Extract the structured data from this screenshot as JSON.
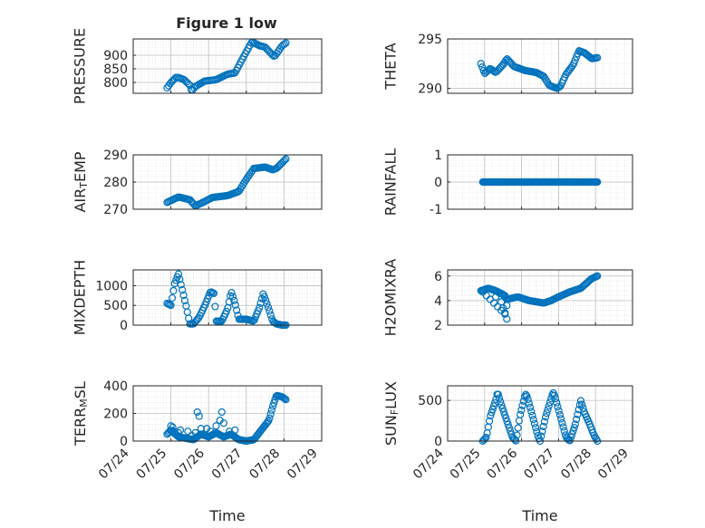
{
  "figure_title": "Figure 1 low",
  "colors": {
    "marker": "#0072BD",
    "axis": "#262626",
    "grid": "#d9d9d9",
    "background": "#ffffff"
  },
  "chart_data": [
    {
      "type": "scatter",
      "name": "pressure",
      "title": "Figure 1 low",
      "xlabel": "",
      "ylabel": "PRESSURE",
      "xlim": [
        0,
        5
      ],
      "ylim": [
        760,
        960
      ],
      "yticks": [
        800,
        850,
        900
      ],
      "ytick_labels": [
        "800",
        "850",
        "900"
      ],
      "xticks": [
        0,
        1,
        2,
        3,
        4,
        5
      ],
      "xtick_labels": [],
      "grid": true,
      "minor_grid": true,
      "keypoints": [
        [
          0.9,
          780
        ],
        [
          1.0,
          800
        ],
        [
          1.15,
          820
        ],
        [
          1.35,
          810
        ],
        [
          1.5,
          790
        ],
        [
          1.55,
          768
        ],
        [
          1.65,
          785
        ],
        [
          1.9,
          805
        ],
        [
          2.2,
          810
        ],
        [
          2.5,
          830
        ],
        [
          2.7,
          835
        ],
        [
          2.95,
          900
        ],
        [
          3.15,
          950
        ],
        [
          3.35,
          935
        ],
        [
          3.5,
          930
        ],
        [
          3.7,
          900
        ],
        [
          3.75,
          895
        ],
        [
          3.95,
          935
        ],
        [
          4.05,
          945
        ]
      ],
      "n_points": 80
    },
    {
      "type": "scatter",
      "name": "theta",
      "xlabel": "",
      "ylabel": "THETA",
      "xlim": [
        0,
        5
      ],
      "ylim": [
        289.5,
        295
      ],
      "yticks": [
        290,
        295
      ],
      "ytick_labels": [
        "290",
        "295"
      ],
      "xticks": [
        0,
        1,
        2,
        3,
        4,
        5
      ],
      "xtick_labels": [],
      "grid": true,
      "minor_grid": true,
      "keypoints": [
        [
          0.9,
          292.5
        ],
        [
          1.0,
          291.5
        ],
        [
          1.15,
          292.0
        ],
        [
          1.3,
          291.6
        ],
        [
          1.5,
          292.4
        ],
        [
          1.6,
          293.0
        ],
        [
          1.8,
          292.2
        ],
        [
          2.1,
          291.8
        ],
        [
          2.4,
          291.6
        ],
        [
          2.6,
          291.2
        ],
        [
          2.75,
          290.3
        ],
        [
          2.95,
          290.0
        ],
        [
          3.05,
          290.2
        ],
        [
          3.2,
          291.4
        ],
        [
          3.4,
          292.4
        ],
        [
          3.55,
          293.8
        ],
        [
          3.7,
          293.6
        ],
        [
          3.9,
          293.0
        ],
        [
          4.05,
          293.1
        ]
      ],
      "n_points": 90
    },
    {
      "type": "scatter",
      "name": "air_temp",
      "xlabel": "",
      "ylabel": "AIR_TEMP",
      "xlim": [
        0,
        5
      ],
      "ylim": [
        270,
        290
      ],
      "yticks": [
        270,
        280,
        290
      ],
      "ytick_labels": [
        "270",
        "280",
        "290"
      ],
      "xticks": [
        0,
        1,
        2,
        3,
        4,
        5
      ],
      "xtick_labels": [],
      "grid": true,
      "minor_grid": true,
      "keypoints": [
        [
          0.9,
          272.5
        ],
        [
          1.2,
          274.5
        ],
        [
          1.5,
          273.5
        ],
        [
          1.65,
          271.2
        ],
        [
          1.85,
          272.5
        ],
        [
          2.1,
          274.3
        ],
        [
          2.5,
          275
        ],
        [
          2.8,
          276.5
        ],
        [
          3.0,
          281
        ],
        [
          3.2,
          285
        ],
        [
          3.5,
          285.5
        ],
        [
          3.7,
          284.5
        ],
        [
          3.8,
          285
        ],
        [
          4.05,
          288.5
        ]
      ],
      "n_points": 90
    },
    {
      "type": "scatter",
      "name": "rainfall",
      "xlabel": "",
      "ylabel": "RAINFALL",
      "xlim": [
        0,
        5
      ],
      "ylim": [
        -1,
        1
      ],
      "yticks": [
        -1,
        0,
        1
      ],
      "ytick_labels": [
        "-1",
        "0",
        "1"
      ],
      "xticks": [
        0,
        1,
        2,
        3,
        4,
        5
      ],
      "xtick_labels": [],
      "grid": true,
      "minor_grid": true,
      "keypoints": [
        [
          0.95,
          0
        ],
        [
          4.05,
          0
        ]
      ],
      "n_points": 160
    },
    {
      "type": "scatter",
      "name": "mixdepth",
      "xlabel": "",
      "ylabel": "MIXDEPTH",
      "xlim": [
        0,
        5
      ],
      "ylim": [
        0,
        1400
      ],
      "yticks": [
        0,
        500,
        1000
      ],
      "ytick_labels": [
        "0",
        "500",
        "1000"
      ],
      "xticks": [
        0,
        1,
        2,
        3,
        4,
        5
      ],
      "xtick_labels": [],
      "grid": true,
      "minor_grid": true,
      "keypoints": [
        [
          0.9,
          550
        ],
        [
          1.0,
          500
        ],
        [
          1.1,
          1050
        ],
        [
          1.2,
          1300
        ],
        [
          1.3,
          900
        ],
        [
          1.4,
          500
        ],
        [
          1.5,
          30
        ],
        [
          1.6,
          30
        ],
        [
          1.75,
          200
        ],
        [
          1.9,
          500
        ],
        [
          2.05,
          850
        ],
        [
          2.15,
          800
        ],
        [
          2.2,
          100
        ],
        [
          2.35,
          100
        ],
        [
          2.5,
          400
        ],
        [
          2.6,
          850
        ],
        [
          2.7,
          550
        ],
        [
          2.8,
          150
        ],
        [
          3.0,
          150
        ],
        [
          3.2,
          100
        ],
        [
          3.35,
          450
        ],
        [
          3.45,
          800
        ],
        [
          3.6,
          400
        ],
        [
          3.7,
          100
        ],
        [
          3.8,
          30
        ],
        [
          3.95,
          0
        ],
        [
          4.05,
          0
        ]
      ],
      "n_points": 95
    },
    {
      "type": "scatter",
      "name": "h2omixra",
      "xlabel": "",
      "ylabel": "H2OMIXRA",
      "xlim": [
        0,
        5
      ],
      "ylim": [
        2,
        6.5
      ],
      "yticks": [
        2,
        4,
        6
      ],
      "ytick_labels": [
        "2",
        "4",
        "6"
      ],
      "xticks": [
        0,
        1,
        2,
        3,
        4,
        5
      ],
      "xtick_labels": [],
      "grid": true,
      "minor_grid": true,
      "keypoints": [
        [
          0.9,
          4.8
        ],
        [
          1.1,
          5.0
        ],
        [
          1.3,
          4.8
        ],
        [
          1.5,
          4.5
        ],
        [
          1.6,
          4.1
        ],
        [
          1.9,
          4.3
        ],
        [
          2.2,
          4.0
        ],
        [
          2.6,
          3.8
        ],
        [
          2.8,
          4.0
        ],
        [
          3.0,
          4.3
        ],
        [
          3.3,
          4.7
        ],
        [
          3.6,
          5.0
        ],
        [
          3.9,
          5.8
        ],
        [
          4.05,
          6.0
        ]
      ],
      "n_points": 100,
      "extra_points": [
        [
          0.95,
          4.7
        ],
        [
          1.05,
          4.4
        ],
        [
          1.15,
          4.1
        ],
        [
          1.25,
          3.8
        ],
        [
          1.35,
          3.5
        ],
        [
          1.45,
          3.2
        ],
        [
          1.55,
          2.9
        ],
        [
          1.6,
          2.5
        ],
        [
          1.55,
          3.0
        ],
        [
          1.5,
          3.4
        ],
        [
          1.45,
          3.9
        ],
        [
          1.6,
          3.6
        ],
        [
          1.55,
          4.4
        ],
        [
          1.4,
          4.6
        ],
        [
          1.3,
          4.3
        ]
      ]
    },
    {
      "type": "scatter",
      "name": "terr_msl",
      "xlabel": "",
      "ylabel": "TERR_MSL",
      "xlim": [
        0,
        5
      ],
      "ylim": [
        0,
        400
      ],
      "yticks": [
        0,
        200,
        400
      ],
      "ytick_labels": [
        "0",
        "200",
        "400"
      ],
      "xticks": [
        0,
        1,
        2,
        3,
        4,
        5
      ],
      "xtick_labels": [],
      "grid": true,
      "minor_grid": true,
      "keypoints": [
        [
          0.9,
          50
        ],
        [
          1.0,
          80
        ],
        [
          1.2,
          30
        ],
        [
          1.4,
          20
        ],
        [
          1.6,
          10
        ],
        [
          1.8,
          50
        ],
        [
          2.0,
          30
        ],
        [
          2.2,
          60
        ],
        [
          2.4,
          30
        ],
        [
          2.6,
          50
        ],
        [
          2.8,
          10
        ],
        [
          3.0,
          0
        ],
        [
          3.2,
          10
        ],
        [
          3.4,
          80
        ],
        [
          3.6,
          150
        ],
        [
          3.7,
          250
        ],
        [
          3.8,
          330
        ],
        [
          3.95,
          320
        ],
        [
          4.05,
          300
        ]
      ],
      "n_points": 110,
      "extra_points": [
        [
          1.0,
          110
        ],
        [
          1.05,
          100
        ],
        [
          1.1,
          70
        ],
        [
          1.2,
          60
        ],
        [
          1.25,
          80
        ],
        [
          1.45,
          70
        ],
        [
          1.55,
          40
        ],
        [
          1.65,
          60
        ],
        [
          1.7,
          210
        ],
        [
          1.75,
          180
        ],
        [
          1.8,
          90
        ],
        [
          1.85,
          50
        ],
        [
          1.95,
          90
        ],
        [
          2.05,
          70
        ],
        [
          2.2,
          110
        ],
        [
          2.3,
          150
        ],
        [
          2.35,
          210
        ],
        [
          2.4,
          130
        ],
        [
          2.55,
          70
        ],
        [
          2.65,
          40
        ],
        [
          2.7,
          80
        ]
      ]
    },
    {
      "type": "scatter",
      "name": "sun_flux",
      "xlabel": "Time",
      "ylabel": "SUN_FLUX",
      "xlim": [
        0,
        5
      ],
      "ylim": [
        0,
        680
      ],
      "yticks": [
        0,
        500
      ],
      "ytick_labels": [
        "0",
        "500"
      ],
      "xticks": [
        0,
        1,
        2,
        3,
        4,
        5
      ],
      "xtick_labels": [
        "07/24",
        "07/25",
        "07/26",
        "07/27",
        "07/28",
        "07/29"
      ],
      "grid": true,
      "minor_grid": true,
      "keypoints": [
        [
          0.95,
          0
        ],
        [
          1.05,
          50
        ],
        [
          1.15,
          300
        ],
        [
          1.3,
          500
        ],
        [
          1.35,
          600
        ],
        [
          1.45,
          450
        ],
        [
          1.6,
          250
        ],
        [
          1.75,
          50
        ],
        [
          1.85,
          0
        ],
        [
          1.95,
          300
        ],
        [
          2.1,
          580
        ],
        [
          2.15,
          550
        ],
        [
          2.3,
          300
        ],
        [
          2.45,
          50
        ],
        [
          2.5,
          0
        ],
        [
          2.65,
          300
        ],
        [
          2.85,
          600
        ],
        [
          2.9,
          550
        ],
        [
          3.05,
          300
        ],
        [
          3.2,
          50
        ],
        [
          3.3,
          0
        ],
        [
          3.45,
          200
        ],
        [
          3.6,
          500
        ],
        [
          3.7,
          350
        ],
        [
          3.85,
          200
        ],
        [
          3.95,
          80
        ],
        [
          4.05,
          0
        ]
      ],
      "n_points": 105
    }
  ]
}
